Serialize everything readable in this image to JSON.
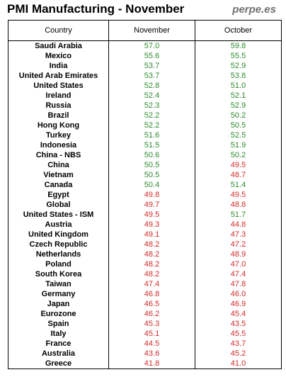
{
  "header": {
    "title": "PMI Manufacturing - November",
    "brand": "perpe.es"
  },
  "table": {
    "columns": [
      "Country",
      "November",
      "October"
    ],
    "rows": [
      {
        "country": "Saudi Arabia",
        "nov": "57.0",
        "oct": "59.8",
        "nov_color": "green",
        "oct_color": "green"
      },
      {
        "country": "Mexico",
        "nov": "55.6",
        "oct": "55.5",
        "nov_color": "green",
        "oct_color": "green"
      },
      {
        "country": "India",
        "nov": "53.7",
        "oct": "52.9",
        "nov_color": "green",
        "oct_color": "green"
      },
      {
        "country": "United Arab Emirates",
        "nov": "53.7",
        "oct": "53.8",
        "nov_color": "green",
        "oct_color": "green"
      },
      {
        "country": "United States",
        "nov": "52.8",
        "oct": "51.0",
        "nov_color": "green",
        "oct_color": "green"
      },
      {
        "country": "Ireland",
        "nov": "52.4",
        "oct": "52.1",
        "nov_color": "green",
        "oct_color": "green"
      },
      {
        "country": "Russia",
        "nov": "52.3",
        "oct": "52.9",
        "nov_color": "green",
        "oct_color": "green"
      },
      {
        "country": "Brazil",
        "nov": "52.2",
        "oct": "50.2",
        "nov_color": "green",
        "oct_color": "green"
      },
      {
        "country": "Hong Kong",
        "nov": "52.2",
        "oct": "50.5",
        "nov_color": "green",
        "oct_color": "green"
      },
      {
        "country": "Turkey",
        "nov": "51.6",
        "oct": "52.5",
        "nov_color": "green",
        "oct_color": "green"
      },
      {
        "country": "Indonesia",
        "nov": "51.5",
        "oct": "51.9",
        "nov_color": "green",
        "oct_color": "green"
      },
      {
        "country": "China - NBS",
        "nov": "50.6",
        "oct": "50.2",
        "nov_color": "green",
        "oct_color": "green"
      },
      {
        "country": "China",
        "nov": "50.5",
        "oct": "49.5",
        "nov_color": "green",
        "oct_color": "red"
      },
      {
        "country": "Vietnam",
        "nov": "50.5",
        "oct": "48.7",
        "nov_color": "green",
        "oct_color": "red"
      },
      {
        "country": "Canada",
        "nov": "50.4",
        "oct": "51.4",
        "nov_color": "green",
        "oct_color": "green"
      },
      {
        "country": "Egypt",
        "nov": "49.8",
        "oct": "49.5",
        "nov_color": "red",
        "oct_color": "red"
      },
      {
        "country": "Global",
        "nov": "49.7",
        "oct": "48.8",
        "nov_color": "red",
        "oct_color": "red"
      },
      {
        "country": "United States - ISM",
        "nov": "49.5",
        "oct": "51.7",
        "nov_color": "red",
        "oct_color": "green"
      },
      {
        "country": "Austria",
        "nov": "49.3",
        "oct": "44.8",
        "nov_color": "red",
        "oct_color": "red"
      },
      {
        "country": "United Kingdom",
        "nov": "49.1",
        "oct": "47.3",
        "nov_color": "red",
        "oct_color": "red"
      },
      {
        "country": "Czech Republic",
        "nov": "48.2",
        "oct": "47.2",
        "nov_color": "red",
        "oct_color": "red"
      },
      {
        "country": "Netherlands",
        "nov": "48.2",
        "oct": "48.9",
        "nov_color": "red",
        "oct_color": "red"
      },
      {
        "country": "Poland",
        "nov": "48.2",
        "oct": "47.0",
        "nov_color": "red",
        "oct_color": "red"
      },
      {
        "country": "South Korea",
        "nov": "48.2",
        "oct": "47.4",
        "nov_color": "red",
        "oct_color": "red"
      },
      {
        "country": "Taiwan",
        "nov": "47.4",
        "oct": "47.8",
        "nov_color": "red",
        "oct_color": "red"
      },
      {
        "country": "Germany",
        "nov": "46.8",
        "oct": "46.0",
        "nov_color": "red",
        "oct_color": "red"
      },
      {
        "country": "Japan",
        "nov": "46.5",
        "oct": "46.9",
        "nov_color": "red",
        "oct_color": "red"
      },
      {
        "country": "Eurozone",
        "nov": "46.2",
        "oct": "45.4",
        "nov_color": "red",
        "oct_color": "red"
      },
      {
        "country": "Spain",
        "nov": "45.3",
        "oct": "43.5",
        "nov_color": "red",
        "oct_color": "red"
      },
      {
        "country": "Italy",
        "nov": "45.1",
        "oct": "45.5",
        "nov_color": "red",
        "oct_color": "red"
      },
      {
        "country": "France",
        "nov": "44.5",
        "oct": "43.7",
        "nov_color": "red",
        "oct_color": "red"
      },
      {
        "country": "Australia",
        "nov": "43.6",
        "oct": "45.2",
        "nov_color": "red",
        "oct_color": "red"
      },
      {
        "country": "Greece",
        "nov": "41.8",
        "oct": "41.0",
        "nov_color": "red",
        "oct_color": "red"
      }
    ]
  },
  "colors": {
    "green": "#2e8b2e",
    "red": "#d42a2a",
    "brand": "#707070"
  }
}
